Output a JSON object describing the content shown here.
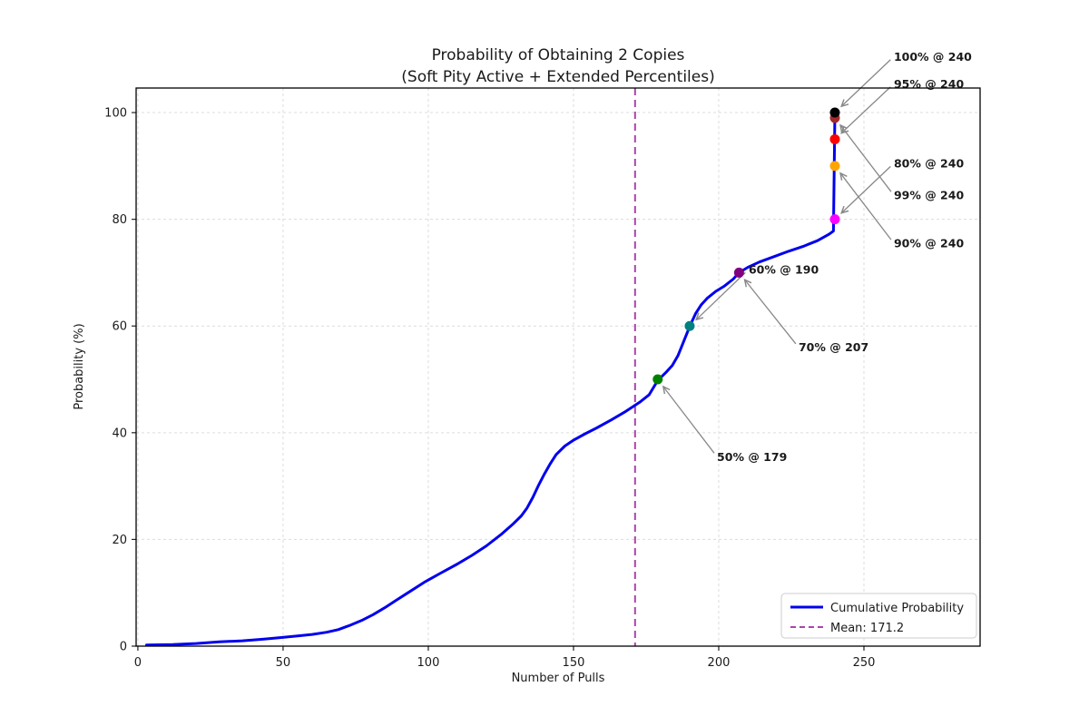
{
  "chart_data": {
    "type": "line",
    "title": "Probability of Obtaining 2 Copies",
    "subtitle": "(Soft Pity Active + Extended Percentiles)",
    "xlabel": "Number of Pulls",
    "ylabel": "Probability (%)",
    "xlim": [
      -0.6,
      290
    ],
    "ylim": [
      0,
      104.6
    ],
    "xticks": [
      0,
      50,
      100,
      150,
      200,
      250
    ],
    "yticks": [
      0,
      20,
      40,
      60,
      80,
      100
    ],
    "grid": true,
    "grid_color": "#dcdcdc",
    "arrow_color": "#888888",
    "series": [
      {
        "name": "Cumulative Probability",
        "color": "#0000ee",
        "points": [
          [
            3,
            0.2
          ],
          [
            12,
            0.3
          ],
          [
            20,
            0.5
          ],
          [
            28,
            0.8
          ],
          [
            36,
            1.0
          ],
          [
            43,
            1.3
          ],
          [
            49,
            1.6
          ],
          [
            55,
            1.9
          ],
          [
            60,
            2.2
          ],
          [
            65,
            2.6
          ],
          [
            69,
            3.1
          ],
          [
            73,
            3.9
          ],
          [
            77,
            4.8
          ],
          [
            81,
            5.9
          ],
          [
            85,
            7.2
          ],
          [
            89,
            8.6
          ],
          [
            93,
            10.0
          ],
          [
            99,
            12.1
          ],
          [
            104,
            13.6
          ],
          [
            110,
            15.4
          ],
          [
            115,
            17.0
          ],
          [
            120,
            18.8
          ],
          [
            125,
            20.9
          ],
          [
            129,
            22.8
          ],
          [
            132,
            24.4
          ],
          [
            134,
            25.9
          ],
          [
            136,
            27.9
          ],
          [
            138,
            30.2
          ],
          [
            140,
            32.3
          ],
          [
            142,
            34.2
          ],
          [
            144,
            35.9
          ],
          [
            147,
            37.5
          ],
          [
            150,
            38.6
          ],
          [
            154,
            39.8
          ],
          [
            158,
            40.9
          ],
          [
            163,
            42.4
          ],
          [
            168,
            44.0
          ],
          [
            173,
            45.8
          ],
          [
            176,
            47.1
          ],
          [
            179,
            49.8
          ],
          [
            182,
            51.4
          ],
          [
            184,
            52.6
          ],
          [
            186,
            54.5
          ],
          [
            188,
            57.2
          ],
          [
            190,
            59.9
          ],
          [
            192,
            62.3
          ],
          [
            194,
            64.0
          ],
          [
            196,
            65.2
          ],
          [
            199,
            66.5
          ],
          [
            202,
            67.5
          ],
          [
            205,
            68.8
          ],
          [
            207,
            70.0
          ],
          [
            210,
            71.0
          ],
          [
            214,
            72.0
          ],
          [
            219,
            73.0
          ],
          [
            224,
            74.0
          ],
          [
            229,
            74.9
          ],
          [
            234,
            76.0
          ],
          [
            238,
            77.2
          ],
          [
            239.5,
            77.8
          ],
          [
            240,
            100
          ]
        ]
      }
    ],
    "mean_line": {
      "x": 171.2,
      "label": "Mean: 171.2",
      "color": "#aa44aa"
    },
    "percentile_markers": [
      {
        "label": "50% @ 179",
        "pulls": 179,
        "percent": 50,
        "color": "#008000",
        "label_pos": [
          199.4,
          35.5
        ]
      },
      {
        "label": "60% @ 190",
        "pulls": 190,
        "percent": 60,
        "color": "#008080",
        "label_pos": [
          210.3,
          70.6
        ]
      },
      {
        "label": "70% @ 207",
        "pulls": 207,
        "percent": 70,
        "color": "#800080",
        "label_pos": [
          227.5,
          56.0
        ]
      },
      {
        "label": "80% @ 240",
        "pulls": 240,
        "percent": 80,
        "color": "#ff00ff",
        "label_pos": [
          260.3,
          90.5
        ]
      },
      {
        "label": "90% @ 240",
        "pulls": 240,
        "percent": 90,
        "color": "#ffa500",
        "label_pos": [
          260.3,
          75.5
        ]
      },
      {
        "label": "95% @ 240",
        "pulls": 240,
        "percent": 95,
        "color": "#ff0000",
        "label_pos": [
          260.3,
          105.4
        ]
      },
      {
        "label": "99% @ 240",
        "pulls": 240,
        "percent": 99,
        "color": "#a52a2a",
        "label_pos": [
          260.3,
          84.5
        ]
      },
      {
        "label": "100% @ 240",
        "pulls": 240,
        "percent": 100,
        "color": "#000000",
        "label_pos": [
          260.3,
          110.5
        ]
      }
    ],
    "legend": {
      "position": "lower right",
      "entries": [
        {
          "label": "Cumulative Probability",
          "color": "#0000ee",
          "style": "solid"
        },
        {
          "label": "Mean: 171.2",
          "color": "#aa44aa",
          "style": "dashed"
        }
      ]
    }
  }
}
